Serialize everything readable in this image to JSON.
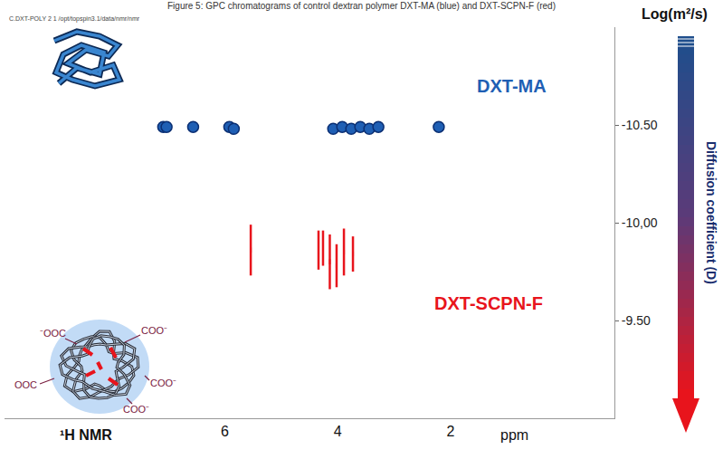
{
  "chart_data": {
    "type": "scatter",
    "title": "Figure 5: GPC chromatograms of control dextran polymer DXT-MA (blue) and DXT-SCPN-F (red)",
    "subtitle": "C.DXT-POLY 2 1 /opt/topspin3.1/data/nmr/nmr",
    "x_label": "ppm",
    "y_label": "Log(m²/s)",
    "colorbar_label": "Diffusion coefficient (D)",
    "annotations": [
      "¹H NMR",
      "⁻OOC",
      "COO⁻",
      "OOC",
      "COO⁻",
      "COO⁻"
    ],
    "xlim": [
      9.9,
      -0.9
    ],
    "xticks": [
      6,
      4,
      2
    ],
    "ylim": [
      -9.0,
      -11.0
    ],
    "yticks": [
      {
        "value": -10.5,
        "label": "-10.50"
      },
      {
        "value": -10,
        "label": "-10,00"
      },
      {
        "value": -9.5,
        "label": "-9.50"
      }
    ],
    "grid": false,
    "series": [
      {
        "name": "DXT-MA",
        "color": "#1f5fb4",
        "marker": "circle",
        "x": [
          7.09,
          7.03,
          6.56,
          5.92,
          5.84,
          4.08,
          3.92,
          3.76,
          3.6,
          3.44,
          3.28,
          2.21
        ],
        "values": [
          -10.49,
          -10.49,
          -10.49,
          -10.49,
          -10.48,
          -10.48,
          -10.49,
          -10.48,
          -10.49,
          -10.48,
          -10.49,
          -10.49
        ]
      },
      {
        "name": "DXT-SCPN-F",
        "color": "#e8141c",
        "marker": "line-ns",
        "x": [
          5.54,
          4.34,
          4.26,
          4.14,
          4.02,
          3.89,
          3.73
        ],
        "values": [
          -9.86,
          -9.86,
          -9.87,
          -9.8,
          -9.78,
          -9.85,
          -9.84
        ],
        "error": [
          0.13,
          0.1,
          0.09,
          0.14,
          0.11,
          0.12,
          0.09
        ]
      }
    ]
  }
}
